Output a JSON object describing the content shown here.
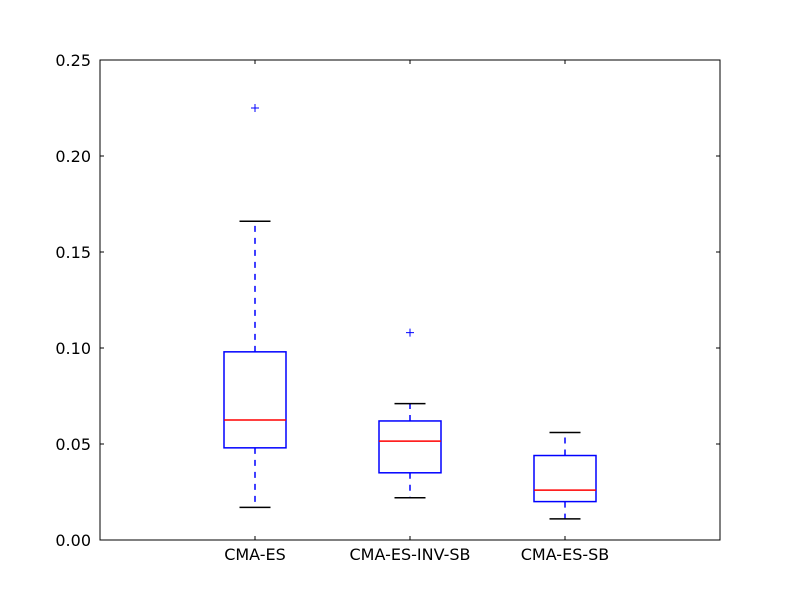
{
  "chart_data": {
    "type": "box",
    "title": "",
    "xlabel": "",
    "ylabel": "",
    "ylim": [
      0.0,
      0.25
    ],
    "yticks": [
      "0.00",
      "0.05",
      "0.10",
      "0.15",
      "0.20",
      "0.25"
    ],
    "yticks_values": [
      0.0,
      0.05,
      0.1,
      0.15,
      0.2,
      0.25
    ],
    "grid": false,
    "categories": [
      "CMA-ES",
      "CMA-ES-INV-SB",
      "CMA-ES-SB"
    ],
    "boxes": [
      {
        "label": "CMA-ES",
        "whisker_low": 0.017,
        "q1": 0.048,
        "median": 0.0625,
        "q3": 0.098,
        "whisker_high": 0.166,
        "outliers": [
          0.225
        ]
      },
      {
        "label": "CMA-ES-INV-SB",
        "whisker_low": 0.022,
        "q1": 0.035,
        "median": 0.0515,
        "q3": 0.062,
        "whisker_high": 0.071,
        "outliers": [
          0.108
        ]
      },
      {
        "label": "CMA-ES-SB",
        "whisker_low": 0.011,
        "q1": 0.02,
        "median": 0.026,
        "q3": 0.044,
        "whisker_high": 0.056,
        "outliers": []
      }
    ],
    "colors": {
      "box": "#0000ff",
      "median": "#ff0000",
      "whisker": "#0000ff",
      "cap": "#000000",
      "outlier": "#0000ff",
      "axes": "#000000"
    }
  }
}
